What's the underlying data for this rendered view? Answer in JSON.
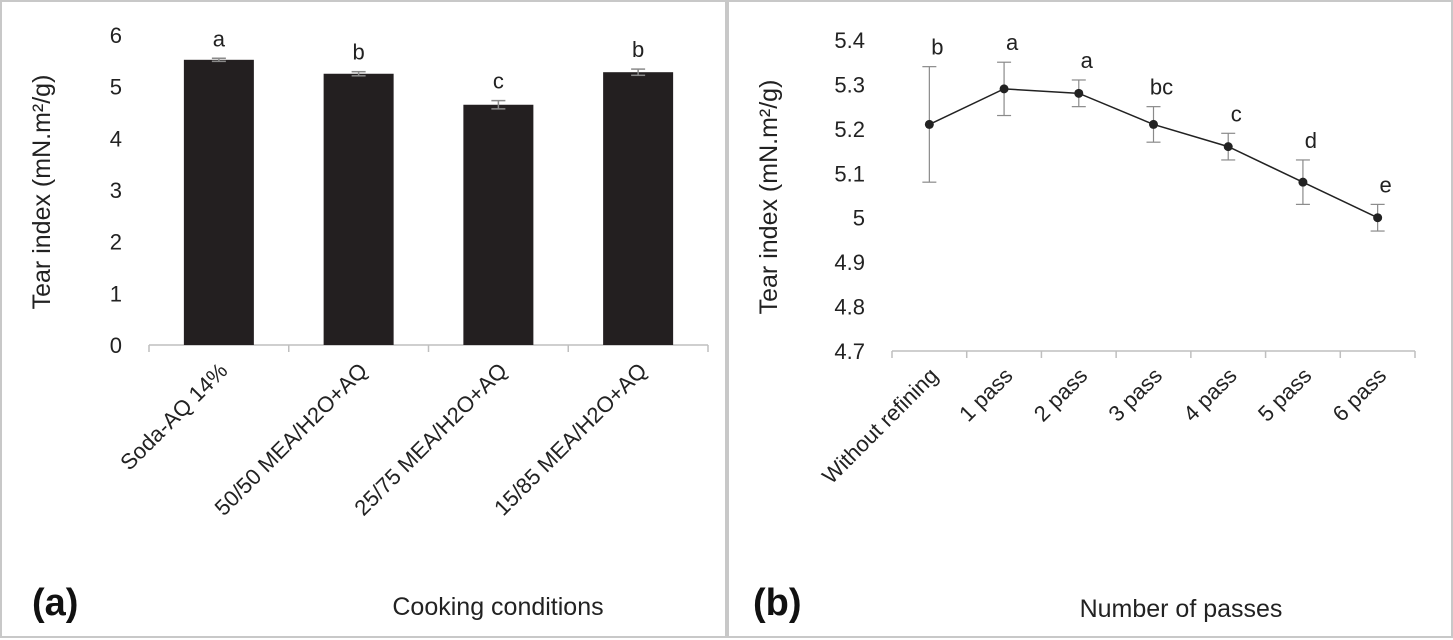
{
  "chart_data": [
    {
      "type": "bar",
      "panel_label": "(a)",
      "title": "",
      "xlabel": "Cooking conditions",
      "ylabel": "Tear index (mN.m²/g)",
      "ylim": [
        0,
        6
      ],
      "yticks": [
        "0",
        "1",
        "2",
        "3",
        "4",
        "5",
        "6"
      ],
      "categories": [
        "Soda-AQ 14%",
        "50/50 MEA/H2O+AQ",
        "25/75 MEA/H2O+AQ",
        "15/85 MEA/H2O+AQ"
      ],
      "values": [
        5.52,
        5.25,
        4.65,
        5.28
      ],
      "errors": [
        0.03,
        0.04,
        0.08,
        0.06
      ],
      "significance": [
        "a",
        "b",
        "c",
        "b"
      ],
      "bar_color": "#231f20"
    },
    {
      "type": "line",
      "panel_label": "(b)",
      "title": "",
      "xlabel": "Number of passes",
      "ylabel": "Tear index (mN.m²/g)",
      "ylim": [
        4.7,
        5.4
      ],
      "yticks": [
        "4.7",
        "4.8",
        "4.9",
        "5",
        "5.1",
        "5.2",
        "5.3",
        "5.4"
      ],
      "categories": [
        "Without refining",
        "1 pass",
        "2 pass",
        "3 pass",
        "4 pass",
        "5 pass",
        "6 pass"
      ],
      "values": [
        5.21,
        5.29,
        5.28,
        5.21,
        5.16,
        5.08,
        5.0
      ],
      "errors": [
        0.13,
        0.06,
        0.03,
        0.04,
        0.03,
        0.05,
        0.03
      ],
      "significance": [
        "b",
        "a",
        "a",
        "bc",
        "c",
        "d",
        "e"
      ],
      "line_color": "#222222"
    }
  ]
}
